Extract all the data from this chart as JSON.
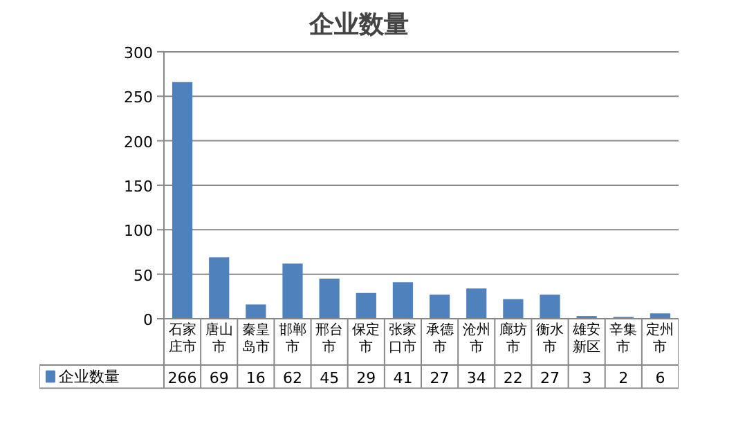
{
  "chart_data": {
    "type": "bar",
    "title": "企业数量",
    "categories": [
      "石家庄市",
      "唐山市",
      "秦皇岛市",
      "邯郸市",
      "邢台市",
      "保定市",
      "张家口市",
      "承德市",
      "沧州市",
      "廊坊市",
      "衡水市",
      "雄安新区",
      "辛集市",
      "定州市"
    ],
    "series": [
      {
        "name": "企业数量",
        "color": "#4f81bd",
        "values": [
          266,
          69,
          16,
          62,
          45,
          29,
          41,
          27,
          34,
          22,
          27,
          3,
          2,
          6
        ]
      }
    ],
    "ylim": [
      0,
      300
    ],
    "yticks": [
      0,
      50,
      100,
      150,
      200,
      250,
      300
    ],
    "grid": "y",
    "data_labels": true
  }
}
